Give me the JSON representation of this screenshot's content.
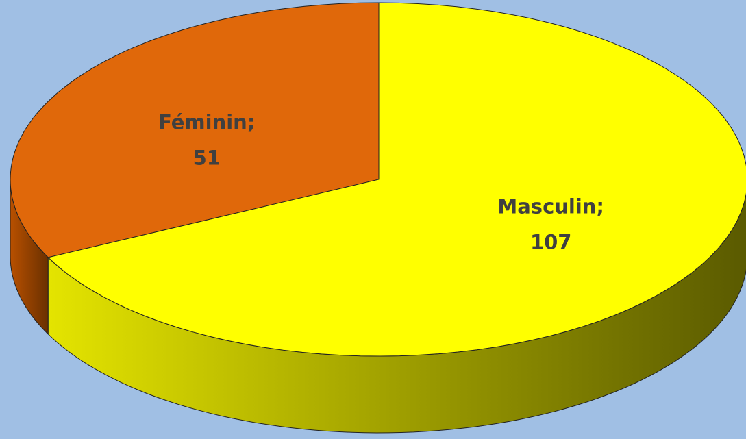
{
  "chart_data": {
    "type": "pie",
    "categories": [
      "Féminin;",
      "Masculin;"
    ],
    "values": [
      51,
      107
    ],
    "colors": [
      "#e0680a",
      "#ffff00"
    ]
  }
}
